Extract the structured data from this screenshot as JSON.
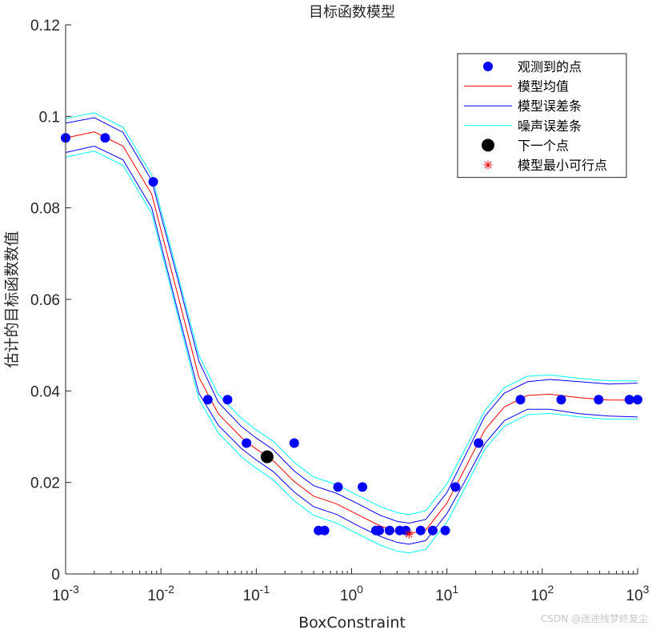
{
  "chart_data": {
    "type": "scatter",
    "title": "目标函数模型",
    "xlabel": "BoxConstraint",
    "ylabel": "估计的目标函数数值",
    "xscale": "log",
    "xlim": [
      0.001,
      1000
    ],
    "ylim": [
      0,
      0.12
    ],
    "x_ticks": [
      {
        "value": 0.001,
        "base": "10",
        "exp": "-3"
      },
      {
        "value": 0.01,
        "base": "10",
        "exp": "-2"
      },
      {
        "value": 0.1,
        "base": "10",
        "exp": "-1"
      },
      {
        "value": 1,
        "base": "10",
        "exp": "0"
      },
      {
        "value": 10,
        "base": "10",
        "exp": "1"
      },
      {
        "value": 100,
        "base": "10",
        "exp": "2"
      },
      {
        "value": 1000,
        "base": "10",
        "exp": "3"
      }
    ],
    "y_ticks": [
      {
        "value": 0,
        "label": "0"
      },
      {
        "value": 0.02,
        "label": "0.02"
      },
      {
        "value": 0.04,
        "label": "0.04"
      },
      {
        "value": 0.06,
        "label": "0.06"
      },
      {
        "value": 0.08,
        "label": "0.08"
      },
      {
        "value": 0.1,
        "label": "0.1"
      },
      {
        "value": 0.12,
        "label": "0.12"
      }
    ],
    "grid": false,
    "legend_position": "top-right",
    "legend": [
      {
        "label": "观测到的点",
        "kind": "dot",
        "color": "#0000ff"
      },
      {
        "label": "模型均值",
        "kind": "line",
        "color": "#ff0000"
      },
      {
        "label": "模型误差条",
        "kind": "line",
        "color": "#0000ff"
      },
      {
        "label": "噪声误差条",
        "kind": "line",
        "color": "#00ffff"
      },
      {
        "label": "下一个点",
        "kind": "bigdot",
        "color": "#000000"
      },
      {
        "label": "模型最小可行点",
        "kind": "star",
        "color": "#ff0000"
      }
    ],
    "series": [
      {
        "name": "观测到的点",
        "kind": "points",
        "color": "#0000ff",
        "points": [
          [
            0.001,
            0.0953
          ],
          [
            0.0026,
            0.0953
          ],
          [
            0.0083,
            0.0857
          ],
          [
            0.031,
            0.0381
          ],
          [
            0.05,
            0.0381
          ],
          [
            0.079,
            0.0286
          ],
          [
            0.25,
            0.0286
          ],
          [
            0.45,
            0.0095
          ],
          [
            0.52,
            0.0095
          ],
          [
            0.72,
            0.019
          ],
          [
            1.3,
            0.019
          ],
          [
            1.8,
            0.0095
          ],
          [
            1.95,
            0.0095
          ],
          [
            2.5,
            0.0095
          ],
          [
            3.2,
            0.0095
          ],
          [
            3.7,
            0.0095
          ],
          [
            5.3,
            0.0095
          ],
          [
            7.1,
            0.0095
          ],
          [
            9.6,
            0.0095
          ],
          [
            12.3,
            0.019
          ],
          [
            21.5,
            0.0286
          ],
          [
            59,
            0.0381
          ],
          [
            158,
            0.0381
          ],
          [
            390,
            0.0381
          ],
          [
            820,
            0.0381
          ],
          [
            1000,
            0.0381
          ]
        ]
      },
      {
        "name": "模型均值",
        "kind": "line",
        "color": "#ff0000",
        "points": [
          [
            0.001,
            0.0953
          ],
          [
            0.002,
            0.0966
          ],
          [
            0.004,
            0.0935
          ],
          [
            0.008,
            0.083
          ],
          [
            0.015,
            0.061
          ],
          [
            0.025,
            0.043
          ],
          [
            0.04,
            0.035
          ],
          [
            0.07,
            0.0298
          ],
          [
            0.1,
            0.0273
          ],
          [
            0.15,
            0.0248
          ],
          [
            0.25,
            0.0202
          ],
          [
            0.4,
            0.017
          ],
          [
            0.7,
            0.0153
          ],
          [
            1.2,
            0.0128
          ],
          [
            2.0,
            0.0105
          ],
          [
            3.0,
            0.0092
          ],
          [
            4.0,
            0.0088
          ],
          [
            6.0,
            0.0096
          ],
          [
            10,
            0.0155
          ],
          [
            15,
            0.0225
          ],
          [
            25,
            0.0315
          ],
          [
            40,
            0.0365
          ],
          [
            70,
            0.039
          ],
          [
            120,
            0.0393
          ],
          [
            250,
            0.0385
          ],
          [
            500,
            0.038
          ],
          [
            1000,
            0.038
          ]
        ]
      },
      {
        "name": "模型误差条 (上)",
        "kind": "line",
        "color": "#0000ff",
        "points": [
          [
            0.001,
            0.0985
          ],
          [
            0.002,
            0.0997
          ],
          [
            0.004,
            0.0965
          ],
          [
            0.008,
            0.086
          ],
          [
            0.015,
            0.0645
          ],
          [
            0.025,
            0.0465
          ],
          [
            0.04,
            0.0375
          ],
          [
            0.07,
            0.0322
          ],
          [
            0.1,
            0.0297
          ],
          [
            0.15,
            0.0272
          ],
          [
            0.25,
            0.0225
          ],
          [
            0.4,
            0.0193
          ],
          [
            0.7,
            0.0176
          ],
          [
            1.2,
            0.0152
          ],
          [
            2.0,
            0.0128
          ],
          [
            3.0,
            0.0115
          ],
          [
            4.0,
            0.0111
          ],
          [
            6.0,
            0.0119
          ],
          [
            10,
            0.0178
          ],
          [
            15,
            0.0252
          ],
          [
            25,
            0.0345
          ],
          [
            40,
            0.0395
          ],
          [
            70,
            0.042
          ],
          [
            120,
            0.0425
          ],
          [
            250,
            0.042
          ],
          [
            500,
            0.0415
          ],
          [
            1000,
            0.0417
          ]
        ]
      },
      {
        "name": "模型误差条 (下)",
        "kind": "line",
        "color": "#0000ff",
        "points": [
          [
            0.001,
            0.0921
          ],
          [
            0.002,
            0.0935
          ],
          [
            0.004,
            0.0905
          ],
          [
            0.008,
            0.08
          ],
          [
            0.015,
            0.0575
          ],
          [
            0.025,
            0.0395
          ],
          [
            0.04,
            0.0325
          ],
          [
            0.07,
            0.0274
          ],
          [
            0.1,
            0.0249
          ],
          [
            0.15,
            0.0224
          ],
          [
            0.25,
            0.0179
          ],
          [
            0.4,
            0.0147
          ],
          [
            0.7,
            0.013
          ],
          [
            1.2,
            0.0104
          ],
          [
            2.0,
            0.0082
          ],
          [
            3.0,
            0.0069
          ],
          [
            4.0,
            0.0065
          ],
          [
            6.0,
            0.0073
          ],
          [
            10,
            0.0132
          ],
          [
            15,
            0.0198
          ],
          [
            25,
            0.0285
          ],
          [
            40,
            0.0335
          ],
          [
            70,
            0.036
          ],
          [
            120,
            0.036
          ],
          [
            250,
            0.035
          ],
          [
            500,
            0.0345
          ],
          [
            1000,
            0.0343
          ]
        ]
      },
      {
        "name": "噪声误差条 (上)",
        "kind": "line",
        "color": "#00ffff",
        "points": [
          [
            0.001,
            0.0995
          ],
          [
            0.002,
            0.1008
          ],
          [
            0.004,
            0.0976
          ],
          [
            0.008,
            0.0872
          ],
          [
            0.015,
            0.0655
          ],
          [
            0.025,
            0.0478
          ],
          [
            0.04,
            0.0392
          ],
          [
            0.07,
            0.034
          ],
          [
            0.1,
            0.0315
          ],
          [
            0.15,
            0.029
          ],
          [
            0.25,
            0.0244
          ],
          [
            0.4,
            0.0212
          ],
          [
            0.7,
            0.0195
          ],
          [
            1.2,
            0.017
          ],
          [
            2.0,
            0.0147
          ],
          [
            3.0,
            0.0134
          ],
          [
            4.0,
            0.013
          ],
          [
            6.0,
            0.0138
          ],
          [
            10,
            0.0197
          ],
          [
            15,
            0.0267
          ],
          [
            25,
            0.0357
          ],
          [
            40,
            0.0407
          ],
          [
            70,
            0.0432
          ],
          [
            120,
            0.0435
          ],
          [
            250,
            0.0427
          ],
          [
            500,
            0.0422
          ],
          [
            1000,
            0.0422
          ]
        ]
      },
      {
        "name": "噪声误差条 (下)",
        "kind": "line",
        "color": "#00ffff",
        "points": [
          [
            0.001,
            0.0911
          ],
          [
            0.002,
            0.0924
          ],
          [
            0.004,
            0.0893
          ],
          [
            0.008,
            0.0788
          ],
          [
            0.015,
            0.0565
          ],
          [
            0.025,
            0.0382
          ],
          [
            0.04,
            0.0308
          ],
          [
            0.07,
            0.0256
          ],
          [
            0.1,
            0.0231
          ],
          [
            0.15,
            0.0206
          ],
          [
            0.25,
            0.016
          ],
          [
            0.4,
            0.0128
          ],
          [
            0.7,
            0.0111
          ],
          [
            1.2,
            0.0086
          ],
          [
            2.0,
            0.0063
          ],
          [
            3.0,
            0.005
          ],
          [
            4.0,
            0.0046
          ],
          [
            6.0,
            0.0054
          ],
          [
            10,
            0.0113
          ],
          [
            15,
            0.0183
          ],
          [
            25,
            0.0273
          ],
          [
            40,
            0.0323
          ],
          [
            70,
            0.0348
          ],
          [
            120,
            0.0351
          ],
          [
            250,
            0.0343
          ],
          [
            500,
            0.0338
          ],
          [
            1000,
            0.0338
          ]
        ]
      },
      {
        "name": "下一个点",
        "kind": "bigdot",
        "color": "#000000",
        "points": [
          [
            0.13,
            0.0256
          ]
        ]
      },
      {
        "name": "模型最小可行点",
        "kind": "star",
        "color": "#ff0000",
        "points": [
          [
            4.0,
            0.0087
          ]
        ]
      }
    ]
  },
  "watermark": "CSDN @迷途残梦终复尘"
}
